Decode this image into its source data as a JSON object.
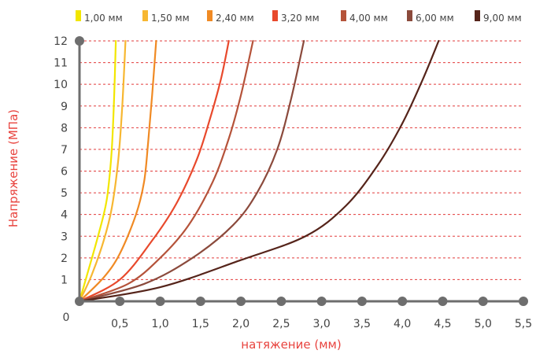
{
  "chart_data": {
    "type": "line",
    "xlabel": "натяжение (мм)",
    "ylabel": "Напряжение (МПа)",
    "xlim": [
      0,
      5.5
    ],
    "ylim": [
      0,
      12
    ],
    "origin_label": "0",
    "x_ticks": [
      "0,5",
      "1,0",
      "1,5",
      "2,0",
      "2,5",
      "3,0",
      "3,5",
      "4,0",
      "4,5",
      "5,0",
      "5,5"
    ],
    "y_ticks": [
      "1",
      "2",
      "3",
      "4",
      "5",
      "6",
      "7",
      "8",
      "9",
      "10",
      "11",
      "12"
    ],
    "grid": "horizontal dashed",
    "legend_position": "top",
    "axis_title_color": "#e8443f",
    "grid_color": "#e23b3b",
    "axis_color": "#6e6e6e",
    "series": [
      {
        "name": "1,00 мм",
        "color": "#f2e600",
        "x": [
          0,
          0.1,
          0.2,
          0.3,
          0.35,
          0.4,
          0.43,
          0.45
        ],
        "y": [
          0,
          1.3,
          2.6,
          4.0,
          5.0,
          7.0,
          9.5,
          12
        ]
      },
      {
        "name": "1,50 мм",
        "color": "#f7b731",
        "x": [
          0,
          0.15,
          0.3,
          0.4,
          0.48,
          0.53,
          0.57
        ],
        "y": [
          0,
          1.2,
          2.8,
          4.3,
          6.5,
          9.0,
          12
        ]
      },
      {
        "name": "2,40 мм",
        "color": "#f08a24",
        "x": [
          0,
          0.3,
          0.5,
          0.7,
          0.8,
          0.85,
          0.9,
          0.95
        ],
        "y": [
          0,
          1.1,
          2.2,
          4.0,
          5.5,
          7.3,
          9.5,
          12
        ]
      },
      {
        "name": "3,20 мм",
        "color": "#e8492c",
        "x": [
          0,
          0.5,
          0.9,
          1.2,
          1.45,
          1.6,
          1.75,
          1.85
        ],
        "y": [
          0,
          1.0,
          2.8,
          4.5,
          6.5,
          8.2,
          10.2,
          12
        ]
      },
      {
        "name": "4,00 мм",
        "color": "#b5533a",
        "x": [
          0,
          0.6,
          1.0,
          1.35,
          1.65,
          1.85,
          2.0,
          2.15
        ],
        "y": [
          0,
          0.8,
          2.0,
          3.5,
          5.5,
          7.5,
          9.5,
          12
        ]
      },
      {
        "name": "6,00 мм",
        "color": "#8b4a3c",
        "x": [
          0,
          0.8,
          1.4,
          1.9,
          2.2,
          2.45,
          2.62,
          2.78
        ],
        "y": [
          0,
          0.8,
          2.0,
          3.5,
          5.0,
          7.0,
          9.3,
          12
        ]
      },
      {
        "name": "9,00 мм",
        "color": "#55241a",
        "x": [
          0,
          1.0,
          2.0,
          2.8,
          3.3,
          3.7,
          4.0,
          4.25,
          4.45
        ],
        "y": [
          0,
          0.65,
          1.9,
          3.0,
          4.4,
          6.3,
          8.2,
          10.2,
          12
        ]
      }
    ]
  }
}
